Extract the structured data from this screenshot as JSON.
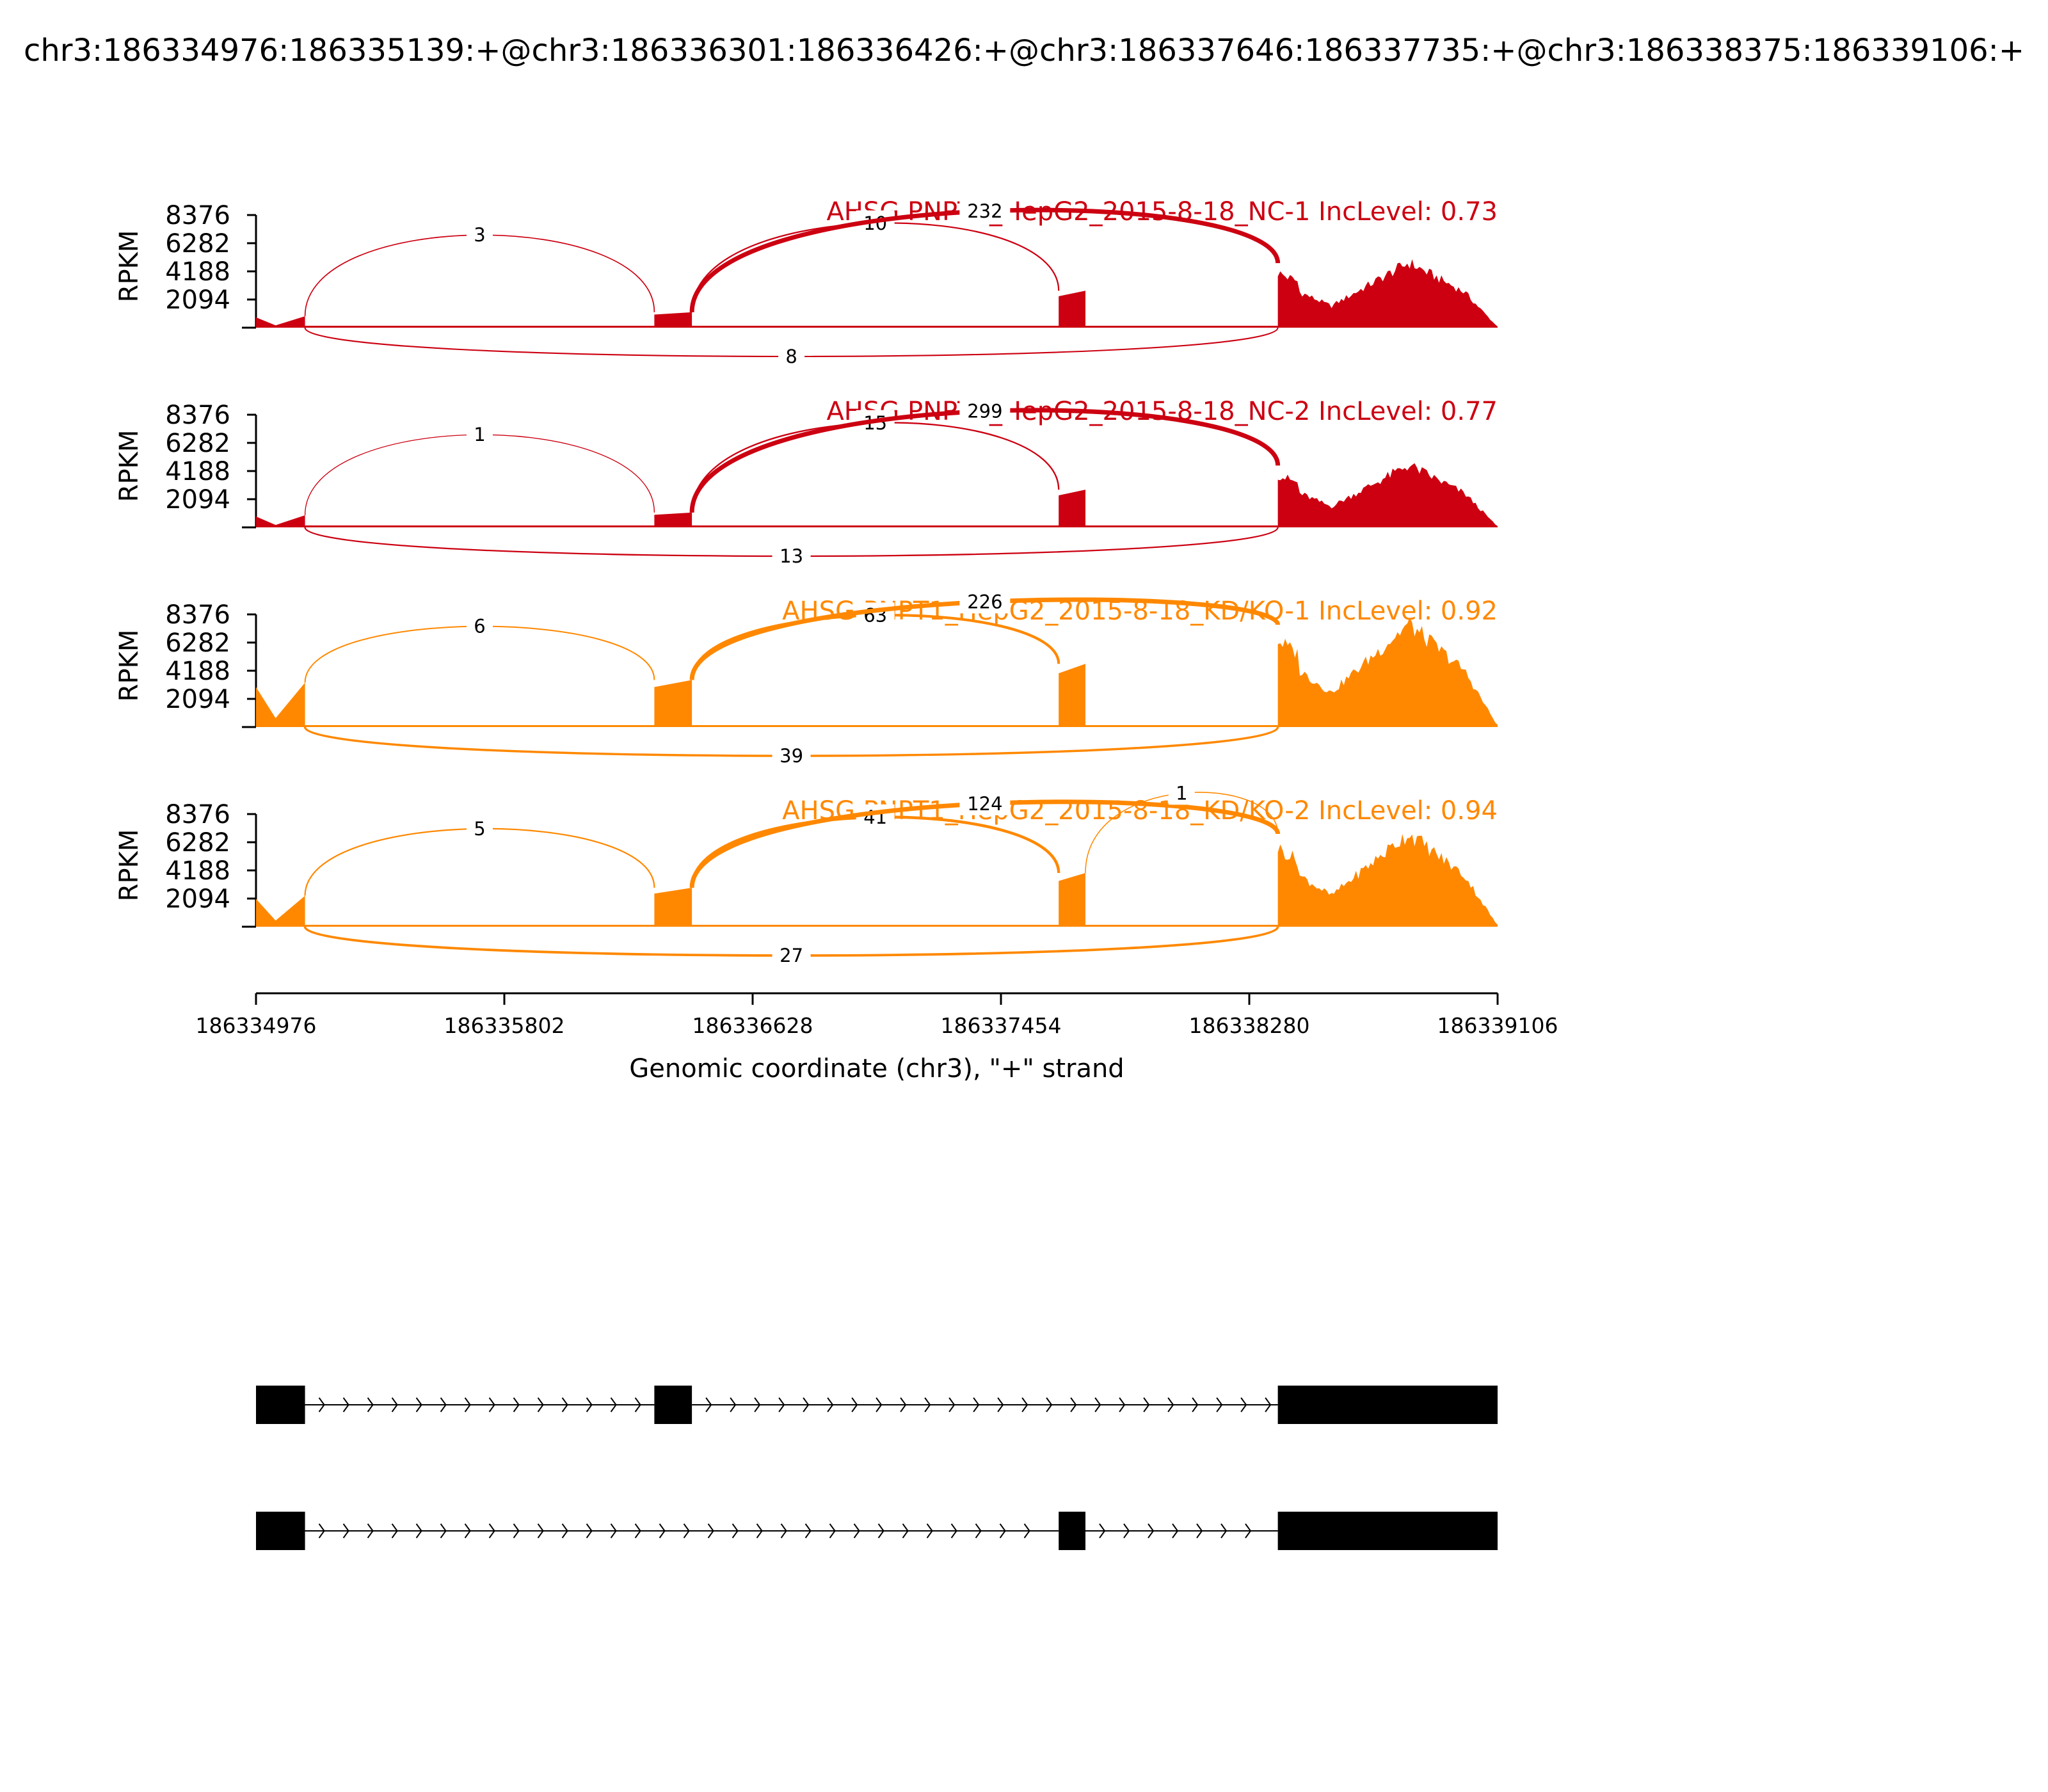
{
  "chart_data": {
    "type": "sashimi",
    "title": "chr3:186334976:186335139:+@chr3:186336301:186336426:+@chr3:186337646:186337735:+@chr3:186338375:186339106:+",
    "ylabel": "RPKM",
    "xlabel": "Genomic coordinate (chr3), \"+\" strand",
    "x_range": [
      186334976,
      186339106
    ],
    "y_range": [
      0,
      8376
    ],
    "y_ticks": [
      "8376",
      "6282",
      "4188",
      "2094"
    ],
    "x_ticks": [
      "186334976",
      "186335802",
      "186336628",
      "186337454",
      "186338280",
      "186339106"
    ],
    "exons": [
      {
        "start": 186334976,
        "end": 186335139
      },
      {
        "start": 186336301,
        "end": 186336426
      },
      {
        "start": 186337646,
        "end": 186337735
      },
      {
        "start": 186338375,
        "end": 186339106
      }
    ],
    "panels": [
      {
        "label": "AHSG PNPT1_HepG2_2015-8-18_NC-1 IncLevel: 0.73",
        "color": "#cc0011",
        "exon_heights": [
          850,
          1150,
          2750,
          4800
        ],
        "junctions": [
          {
            "from": 186335139,
            "to": 186336301,
            "count": "3",
            "side": "above"
          },
          {
            "from": 186336426,
            "to": 186337646,
            "count": "10",
            "side": "above"
          },
          {
            "from": 186336426,
            "to": 186338375,
            "count": "232",
            "side": "above"
          },
          {
            "from": 186335139,
            "to": 186338375,
            "count": "8",
            "side": "below"
          }
        ]
      },
      {
        "label": "AHSG PNPT1_HepG2_2015-8-18_NC-2 IncLevel: 0.77",
        "color": "#cc0011",
        "exon_heights": [
          900,
          1100,
          2800,
          4600
        ],
        "junctions": [
          {
            "from": 186335139,
            "to": 186336301,
            "count": "1",
            "side": "above"
          },
          {
            "from": 186336426,
            "to": 186337646,
            "count": "15",
            "side": "above"
          },
          {
            "from": 186336426,
            "to": 186338375,
            "count": "299",
            "side": "above"
          },
          {
            "from": 186335139,
            "to": 186338375,
            "count": "13",
            "side": "below"
          }
        ]
      },
      {
        "label": "AHSG PNPT1_HepG2_2015-8-18_KD/KO-1 IncLevel: 0.92",
        "color": "#ff8800",
        "exon_heights": [
          3300,
          3500,
          4700,
          7600
        ],
        "junctions": [
          {
            "from": 186335139,
            "to": 186336301,
            "count": "6",
            "side": "above"
          },
          {
            "from": 186336426,
            "to": 186337646,
            "count": "63",
            "side": "above"
          },
          {
            "from": 186336426,
            "to": 186338375,
            "count": "226",
            "side": "above"
          },
          {
            "from": 186335139,
            "to": 186338375,
            "count": "39",
            "side": "below"
          }
        ]
      },
      {
        "label": "AHSG PNPT1_HepG2_2015-8-18_KD/KO-2 IncLevel: 0.94",
        "color": "#ff8800",
        "exon_heights": [
          2300,
          2900,
          4000,
          6900
        ],
        "junctions": [
          {
            "from": 186335139,
            "to": 186336301,
            "count": "5",
            "side": "above"
          },
          {
            "from": 186336426,
            "to": 186337646,
            "count": "41",
            "side": "above"
          },
          {
            "from": 186336426,
            "to": 186338375,
            "count": "124",
            "side": "above"
          },
          {
            "from": 186337735,
            "to": 186338375,
            "count": "1",
            "side": "above"
          },
          {
            "from": 186335139,
            "to": 186338375,
            "count": "27",
            "side": "below"
          }
        ]
      }
    ],
    "isoforms": [
      {
        "exons": [
          0,
          1,
          3
        ]
      },
      {
        "exons": [
          0,
          2,
          3
        ]
      }
    ]
  }
}
